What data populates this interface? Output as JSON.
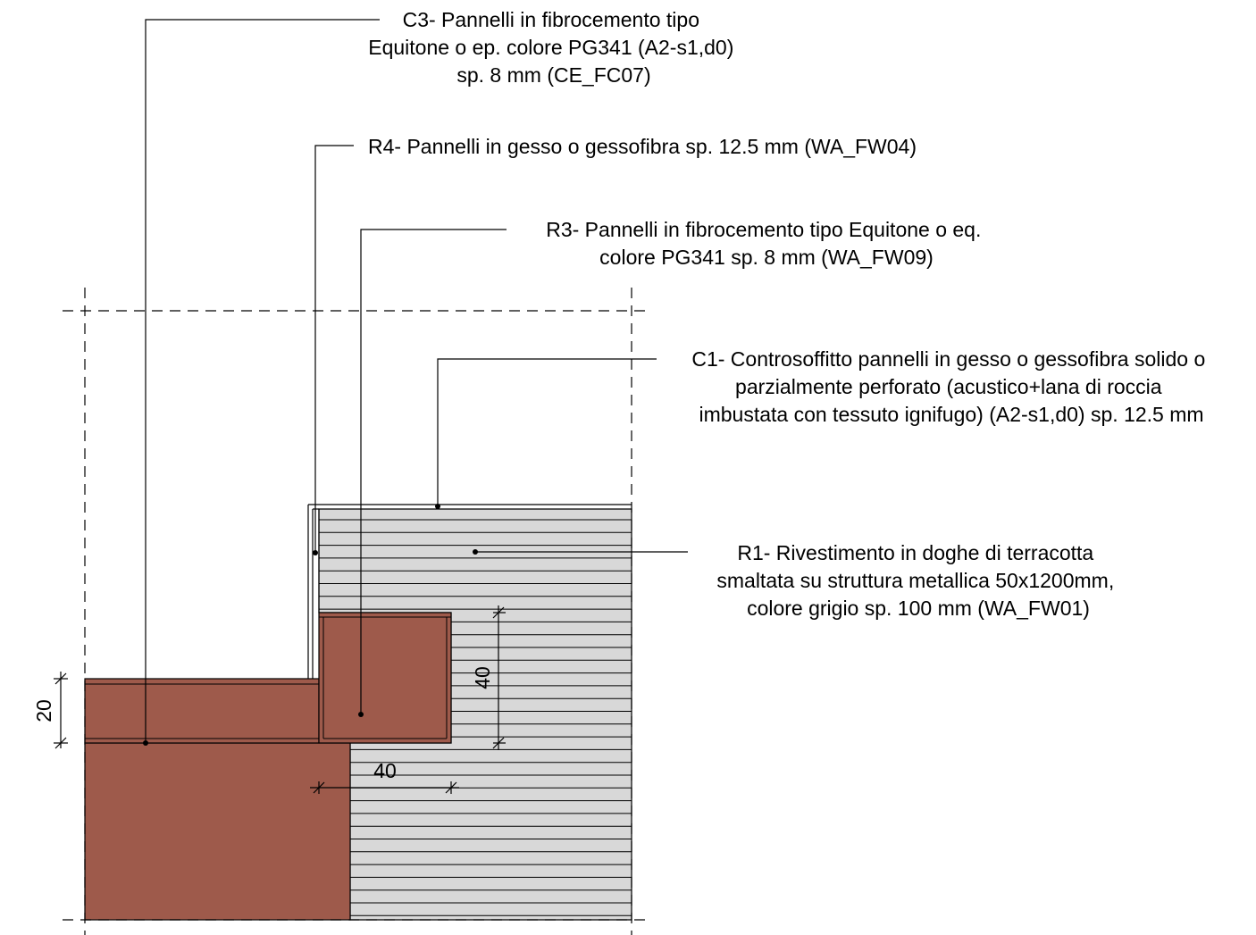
{
  "colors": {
    "terracotta": "#9e5a4b",
    "cladding_fill": "#d8d8d8",
    "line": "#000000",
    "background": "#ffffff"
  },
  "labels": {
    "c3": [
      "C3- Pannelli in fibrocemento tipo",
      "Equitone o ep. colore PG341 (A2-s1,d0)",
      "sp. 8 mm (CE_FC07)"
    ],
    "r4": [
      "R4- Pannelli in gesso o gessofibra sp. 12.5 mm (WA_FW04)"
    ],
    "r3": [
      "R3- Pannelli in fibrocemento tipo Equitone o eq.",
      "colore PG341 sp. 8 mm (WA_FW09)"
    ],
    "c1": [
      "C1- Controsoffitto pannelli in gesso o gessofibra solido o",
      "parzialmente perforato (acustico+lana di roccia",
      "imbustata con tessuto ignifugo) (A2-s1,d0) sp. 12.5 mm"
    ],
    "r1": [
      "R1- Rivestimento in doghe di terracotta",
      "smaltata su struttura metallica 50x1200mm,",
      "colore grigio sp. 100 mm (WA_FW01)"
    ]
  },
  "dimensions": {
    "left_vertical": "20",
    "right_vertical": "40",
    "bottom_horizontal": "40"
  }
}
